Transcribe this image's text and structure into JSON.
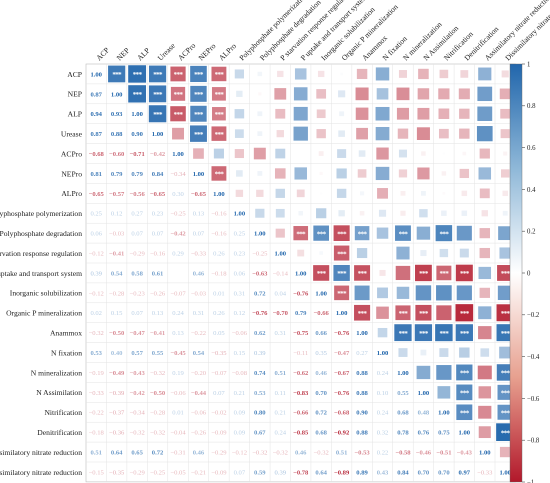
{
  "chart_data": {
    "type": "heatmap",
    "title": "",
    "matrix_style": "lower triangle numeric coefficients, upper triangle sized squares with significance asterisks",
    "variables": [
      "ACP",
      "NEP",
      "ALP",
      "Urease",
      "ACPro",
      "NEPro",
      "ALPro",
      "Polyphosphate polymerization",
      "Polyphosphate degradation",
      "P starvation response regulation",
      "P uptake and transport system",
      "Inorganic  solubilization",
      "Organic P mineralization",
      "Anammox",
      "N fixation",
      "N mineralization",
      "N Assimilation",
      "Nitrification",
      "Denitrification",
      "Assimilatory nitrate reduction",
      "Dissimilatory nitrate reduction"
    ],
    "lower_triangle": [
      [],
      [
        0.87
      ],
      [
        0.94,
        0.93
      ],
      [
        0.87,
        0.88,
        0.9
      ],
      [
        -0.68,
        -0.6,
        -0.71,
        -0.42
      ],
      [
        0.81,
        0.79,
        0.79,
        0.84,
        -0.34
      ],
      [
        -0.65,
        -0.57,
        -0.56,
        -0.65,
        0.3,
        -0.65
      ],
      [
        0.25,
        0.12,
        0.27,
        0.23,
        -0.25,
        0.13,
        -0.16
      ],
      [
        0.06,
        -0.03,
        0.07,
        0.07,
        -0.42,
        0.07,
        -0.16,
        0.25
      ],
      [
        -0.12,
        -0.41,
        -0.29,
        -0.16,
        0.29,
        -0.33,
        0.26,
        0.23,
        -0.25
      ],
      [
        0.39,
        0.54,
        0.58,
        0.61,
        0.0,
        0.46,
        -0.18,
        0.06,
        -0.63,
        -0.14
      ],
      [
        -0.12,
        -0.28,
        -0.23,
        -0.26,
        -0.07,
        -0.03,
        0.01,
        0.31,
        0.72,
        0.04,
        -0.76
      ],
      [
        0.02,
        0.15,
        0.07,
        0.13,
        0.24,
        0.31,
        0.26,
        0.12,
        -0.76,
        -0.7,
        0.79,
        -0.66
      ],
      [
        -0.32,
        -0.5,
        -0.47,
        -0.41,
        0.13,
        -0.22,
        0.05,
        -0.06,
        0.62,
        0.31,
        -0.75,
        0.66,
        -0.76
      ],
      [
        0.53,
        0.4,
        0.57,
        0.55,
        -0.45,
        0.54,
        -0.35,
        0.15,
        0.39,
        0.0,
        -0.11,
        0.35,
        -0.47,
        0.27
      ],
      [
        -0.19,
        -0.49,
        -0.43,
        -0.32,
        0.19,
        -0.2,
        -0.07,
        -0.08,
        0.74,
        0.51,
        -0.62,
        0.46,
        -0.67,
        0.88,
        0.24
      ],
      [
        -0.33,
        -0.39,
        -0.42,
        -0.5,
        -0.06,
        -0.44,
        0.07,
        0.21,
        0.53,
        0.11,
        -0.83,
        0.7,
        -0.76,
        0.88,
        0.1,
        0.55
      ],
      [
        -0.22,
        -0.37,
        -0.34,
        -0.28,
        0.01,
        -0.06,
        -0.02,
        0.09,
        0.8,
        0.21,
        -0.66,
        0.72,
        -0.68,
        0.9,
        0.24,
        0.68,
        0.48
      ],
      [
        -0.18,
        -0.36,
        -0.32,
        -0.32,
        -0.04,
        -0.26,
        -0.09,
        0.09,
        0.67,
        0.24,
        -0.85,
        0.68,
        -0.92,
        0.88,
        0.32,
        0.78,
        0.76,
        0.75
      ],
      [
        0.51,
        0.64,
        0.65,
        0.72,
        -0.31,
        0.46,
        -0.29,
        -0.12,
        -0.32,
        -0.32,
        0.46,
        -0.32,
        0.51,
        -0.53,
        0.22,
        -0.58,
        -0.46,
        -0.51,
        -0.43
      ],
      [
        -0.15,
        -0.35,
        -0.29,
        -0.25,
        -0.05,
        -0.21,
        -0.09,
        0.07,
        0.59,
        0.39,
        -0.78,
        0.64,
        -0.89,
        0.89,
        0.43,
        0.84,
        0.7,
        0.7,
        0.97,
        -0.33
      ]
    ],
    "diagonal": 1.0,
    "diagonal_label": "1.00",
    "significant_pairs": [
      [
        0,
        1
      ],
      [
        0,
        2
      ],
      [
        0,
        3
      ],
      [
        0,
        4
      ],
      [
        0,
        5
      ],
      [
        0,
        6
      ],
      [
        1,
        2
      ],
      [
        1,
        3
      ],
      [
        1,
        4
      ],
      [
        1,
        5
      ],
      [
        1,
        6
      ],
      [
        2,
        3
      ],
      [
        2,
        4
      ],
      [
        2,
        5
      ],
      [
        2,
        6
      ],
      [
        3,
        5
      ],
      [
        3,
        6
      ],
      [
        5,
        6
      ],
      [
        8,
        10
      ],
      [
        8,
        11
      ],
      [
        8,
        12
      ],
      [
        8,
        13
      ],
      [
        8,
        15
      ],
      [
        8,
        17
      ],
      [
        9,
        12
      ],
      [
        10,
        11
      ],
      [
        10,
        12
      ],
      [
        10,
        13
      ],
      [
        10,
        16
      ],
      [
        10,
        17
      ],
      [
        10,
        18
      ],
      [
        10,
        20
      ],
      [
        11,
        12
      ],
      [
        12,
        13
      ],
      [
        12,
        15
      ],
      [
        12,
        16
      ],
      [
        12,
        18
      ],
      [
        12,
        20
      ],
      [
        13,
        15
      ],
      [
        13,
        16
      ],
      [
        13,
        17
      ],
      [
        13,
        18
      ],
      [
        13,
        20
      ],
      [
        15,
        18
      ],
      [
        15,
        20
      ],
      [
        16,
        18
      ],
      [
        16,
        20
      ],
      [
        17,
        18
      ],
      [
        17,
        20
      ],
      [
        18,
        20
      ]
    ],
    "colorbar": {
      "min": -1,
      "max": 1,
      "ticks": [
        -1,
        -0.8,
        -0.6,
        -0.4,
        -0.2,
        0,
        0.2,
        0.4,
        0.6,
        0.8,
        1
      ],
      "tick_labels": [
        "−1",
        "−0.8",
        "−0.6",
        "−0.4",
        "−0.2",
        "0",
        "0.2",
        "0.4",
        "0.6",
        "0.8",
        "1"
      ],
      "colors": {
        "negative": "#b2182b",
        "neutral": "#ffffff",
        "positive": "#2166ac"
      }
    },
    "legend_position": "right"
  }
}
